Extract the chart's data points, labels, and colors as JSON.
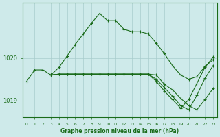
{
  "bg_color": "#ceeaea",
  "line_color": "#1a6b1a",
  "grid_color": "#a8cccc",
  "xlim": [
    -0.5,
    23.5
  ],
  "ylim": [
    1018.6,
    1021.3
  ],
  "yticks": [
    1019,
    1020
  ],
  "series": [
    {
      "x": [
        0,
        1,
        2,
        3,
        4,
        5,
        6,
        7,
        8,
        9,
        10,
        11,
        12,
        13,
        14,
        15,
        16,
        17,
        18,
        19,
        20,
        21,
        22,
        23
      ],
      "y": [
        1019.45,
        1019.72,
        1019.72,
        1019.6,
        1019.78,
        1020.05,
        1020.32,
        1020.57,
        1020.82,
        1021.05,
        1020.88,
        1020.88,
        1020.68,
        1020.62,
        1020.62,
        1020.57,
        1020.35,
        1020.1,
        1019.82,
        1019.6,
        1019.5,
        1019.56,
        1019.8,
        1019.96
      ]
    },
    {
      "x": [
        3,
        4,
        5,
        6,
        7,
        8,
        9,
        10,
        11,
        12,
        13,
        14,
        15,
        16,
        17,
        18,
        19,
        20,
        21,
        22,
        23
      ],
      "y": [
        1019.6,
        1019.62,
        1019.62,
        1019.62,
        1019.62,
        1019.62,
        1019.62,
        1019.62,
        1019.62,
        1019.62,
        1019.62,
        1019.62,
        1019.62,
        1019.6,
        1019.38,
        1019.25,
        1019.05,
        1018.88,
        1018.78,
        1019.02,
        1019.28
      ]
    },
    {
      "x": [
        3,
        4,
        5,
        6,
        7,
        8,
        9,
        10,
        11,
        12,
        13,
        14,
        15,
        16,
        17,
        18,
        19,
        20,
        21,
        22,
        23
      ],
      "y": [
        1019.6,
        1019.62,
        1019.62,
        1019.62,
        1019.62,
        1019.62,
        1019.62,
        1019.62,
        1019.62,
        1019.62,
        1019.62,
        1019.62,
        1019.62,
        1019.5,
        1019.3,
        1019.1,
        1018.88,
        1018.78,
        1019.12,
        1019.52,
        1019.82
      ]
    },
    {
      "x": [
        3,
        4,
        5,
        6,
        7,
        8,
        9,
        10,
        11,
        12,
        13,
        14,
        15,
        16,
        17,
        18,
        19,
        20,
        21,
        22,
        23
      ],
      "y": [
        1019.6,
        1019.62,
        1019.62,
        1019.62,
        1019.62,
        1019.62,
        1019.62,
        1019.62,
        1019.62,
        1019.62,
        1019.62,
        1019.62,
        1019.62,
        1019.45,
        1019.22,
        1019.02,
        1018.82,
        1019.02,
        1019.4,
        1019.78,
        1020.02
      ]
    }
  ],
  "xtick_labels": [
    "0",
    "1",
    "2",
    "3",
    "4",
    "5",
    "6",
    "7",
    "8",
    "9",
    "10",
    "11",
    "12",
    "13",
    "14",
    "15",
    "16",
    "17",
    "18",
    "19",
    "20",
    "21",
    "22",
    "23"
  ],
  "xlabel": "Graphe pression niveau de la mer (hPa)",
  "marker": "+"
}
